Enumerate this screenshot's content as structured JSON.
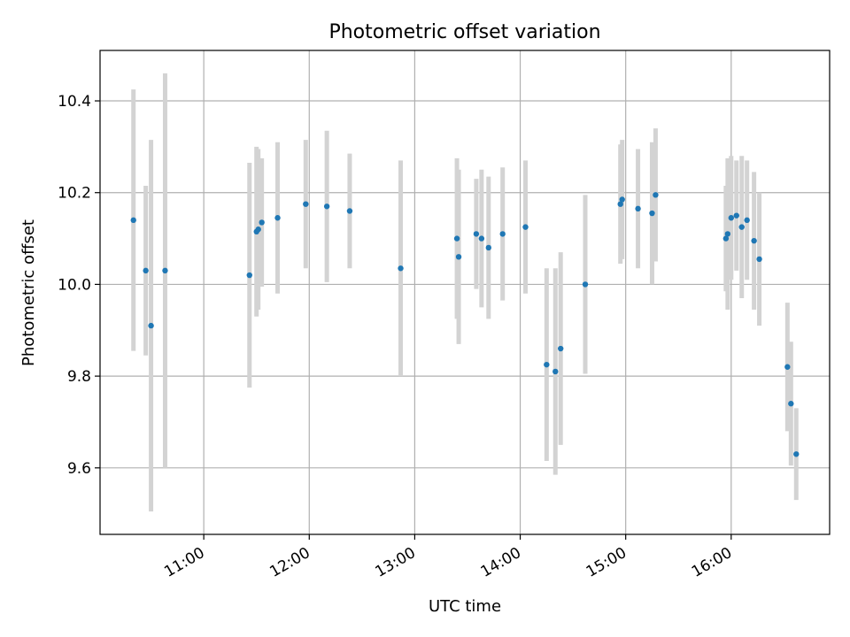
{
  "chart_data": {
    "type": "scatter",
    "title": "Photometric offset variation",
    "xlabel": "UTC time",
    "ylabel": "Photometric offset",
    "x_axis_type": "time",
    "xlim": [
      "10:01",
      "16:56"
    ],
    "ylim": [
      9.455,
      10.51
    ],
    "xticks": [
      "11:00",
      "12:00",
      "13:00",
      "14:00",
      "15:00",
      "16:00"
    ],
    "yticks": [
      "9.6",
      "9.8",
      "10.0",
      "10.2",
      "10.4"
    ],
    "grid": true,
    "colors": {
      "points": "#1f77b4",
      "error_bars": "#d3d3d3"
    },
    "points": [
      {
        "x": "10:20",
        "y": 10.14,
        "err": 0.285
      },
      {
        "x": "10:27",
        "y": 10.03,
        "err": 0.185
      },
      {
        "x": "10:30",
        "y": 9.91,
        "err": 0.405
      },
      {
        "x": "10:38",
        "y": 10.03,
        "err": 0.43
      },
      {
        "x": "11:26",
        "y": 10.02,
        "err": 0.245
      },
      {
        "x": "11:30",
        "y": 10.115,
        "err": 0.185
      },
      {
        "x": "11:31",
        "y": 10.12,
        "err": 0.175
      },
      {
        "x": "11:33",
        "y": 10.135,
        "err": 0.14
      },
      {
        "x": "11:42",
        "y": 10.145,
        "err": 0.165
      },
      {
        "x": "11:58",
        "y": 10.175,
        "err": 0.14
      },
      {
        "x": "12:10",
        "y": 10.17,
        "err": 0.165
      },
      {
        "x": "12:23",
        "y": 10.16,
        "err": 0.125
      },
      {
        "x": "12:52",
        "y": 10.035,
        "err": 0.235
      },
      {
        "x": "13:24",
        "y": 10.1,
        "err": 0.175
      },
      {
        "x": "13:25",
        "y": 10.06,
        "err": 0.19
      },
      {
        "x": "13:35",
        "y": 10.11,
        "err": 0.12
      },
      {
        "x": "13:38",
        "y": 10.1,
        "err": 0.15
      },
      {
        "x": "13:42",
        "y": 10.08,
        "err": 0.155
      },
      {
        "x": "13:50",
        "y": 10.11,
        "err": 0.145
      },
      {
        "x": "14:03",
        "y": 10.125,
        "err": 0.145
      },
      {
        "x": "14:15",
        "y": 9.825,
        "err": 0.21
      },
      {
        "x": "14:20",
        "y": 9.81,
        "err": 0.225
      },
      {
        "x": "14:23",
        "y": 9.86,
        "err": 0.21
      },
      {
        "x": "14:37",
        "y": 10.0,
        "err": 0.195
      },
      {
        "x": "14:57",
        "y": 10.175,
        "err": 0.13
      },
      {
        "x": "14:58",
        "y": 10.185,
        "err": 0.13
      },
      {
        "x": "15:07",
        "y": 10.165,
        "err": 0.13
      },
      {
        "x": "15:15",
        "y": 10.155,
        "err": 0.155
      },
      {
        "x": "15:17",
        "y": 10.195,
        "err": 0.145
      },
      {
        "x": "15:57",
        "y": 10.1,
        "err": 0.115
      },
      {
        "x": "15:58",
        "y": 10.11,
        "err": 0.165
      },
      {
        "x": "16:00",
        "y": 10.145,
        "err": 0.135
      },
      {
        "x": "16:03",
        "y": 10.15,
        "err": 0.12
      },
      {
        "x": "16:06",
        "y": 10.125,
        "err": 0.155
      },
      {
        "x": "16:09",
        "y": 10.14,
        "err": 0.13
      },
      {
        "x": "16:13",
        "y": 10.095,
        "err": 0.15
      },
      {
        "x": "16:16",
        "y": 10.055,
        "err": 0.145
      },
      {
        "x": "16:32",
        "y": 9.82,
        "err": 0.14
      },
      {
        "x": "16:34",
        "y": 9.74,
        "err": 0.135
      },
      {
        "x": "16:37",
        "y": 9.63,
        "err": 0.1
      }
    ]
  }
}
